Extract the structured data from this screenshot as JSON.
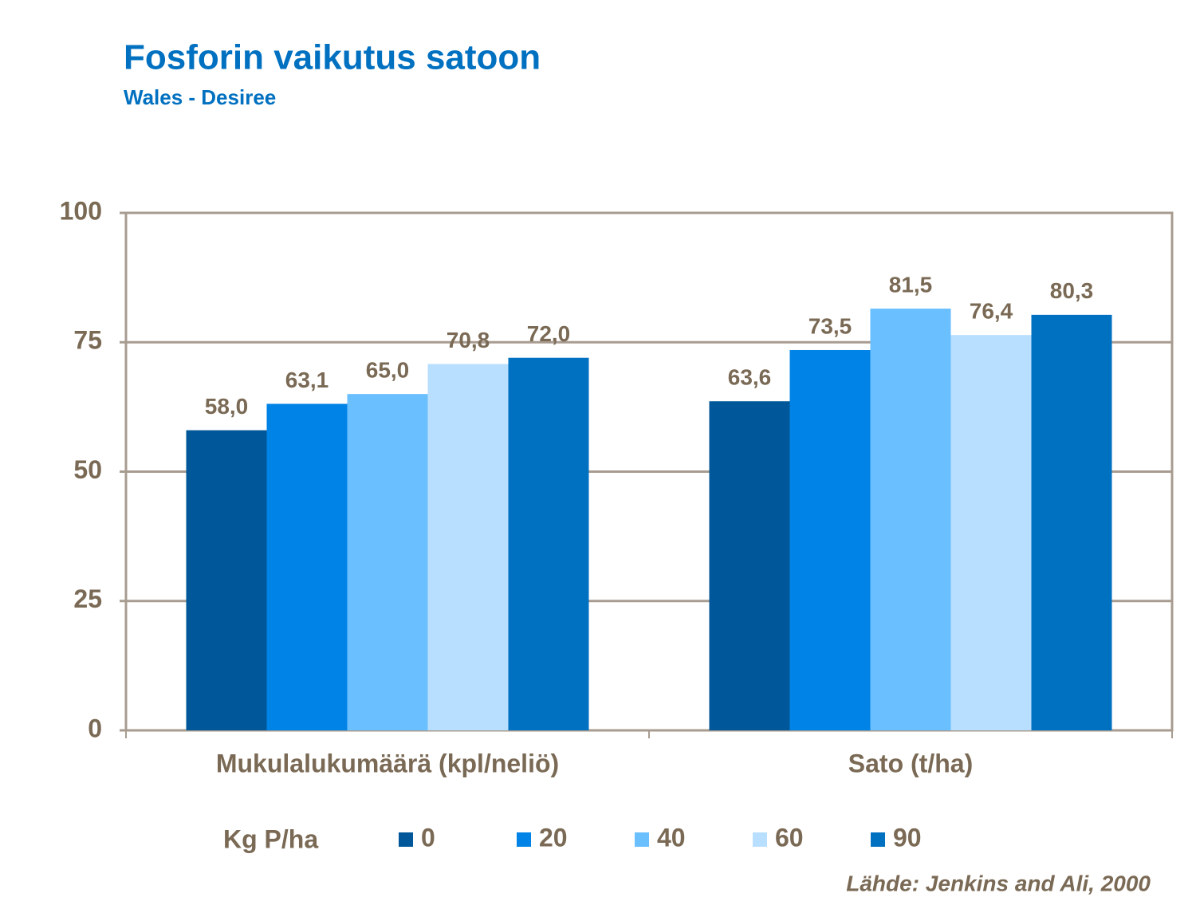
{
  "chart_data": {
    "type": "bar",
    "title": "Fosforin vaikutus satoon",
    "subtitle": "Wales - Desiree",
    "categories": [
      "Mukulalukumäärä (kpl/neliö)",
      "Sato (t/ha)"
    ],
    "series": [
      {
        "name": "0",
        "color": "#00589a",
        "values": [
          58.0,
          63.6
        ],
        "value_labels": [
          "58,0",
          "63,6"
        ]
      },
      {
        "name": "20",
        "color": "#0083e6",
        "values": [
          63.1,
          73.5
        ],
        "value_labels": [
          "63,1",
          "73,5"
        ]
      },
      {
        "name": "40",
        "color": "#6abfff",
        "values": [
          65.0,
          81.5
        ],
        "value_labels": [
          "65,0",
          "81,5"
        ]
      },
      {
        "name": "60",
        "color": "#b8dfff",
        "values": [
          70.8,
          76.4
        ],
        "value_labels": [
          "70,8",
          "76,4"
        ]
      },
      {
        "name": "90",
        "color": "#0070c0",
        "values": [
          72.0,
          80.3
        ],
        "value_labels": [
          "72,0",
          "80,3"
        ]
      }
    ],
    "legend_title": "Kg P/ha",
    "source": "Lähde: Jenkins and Ali, 2000",
    "ylim": [
      0,
      100
    ],
    "yticks": [
      0,
      25,
      50,
      75,
      100
    ],
    "grid": true
  }
}
